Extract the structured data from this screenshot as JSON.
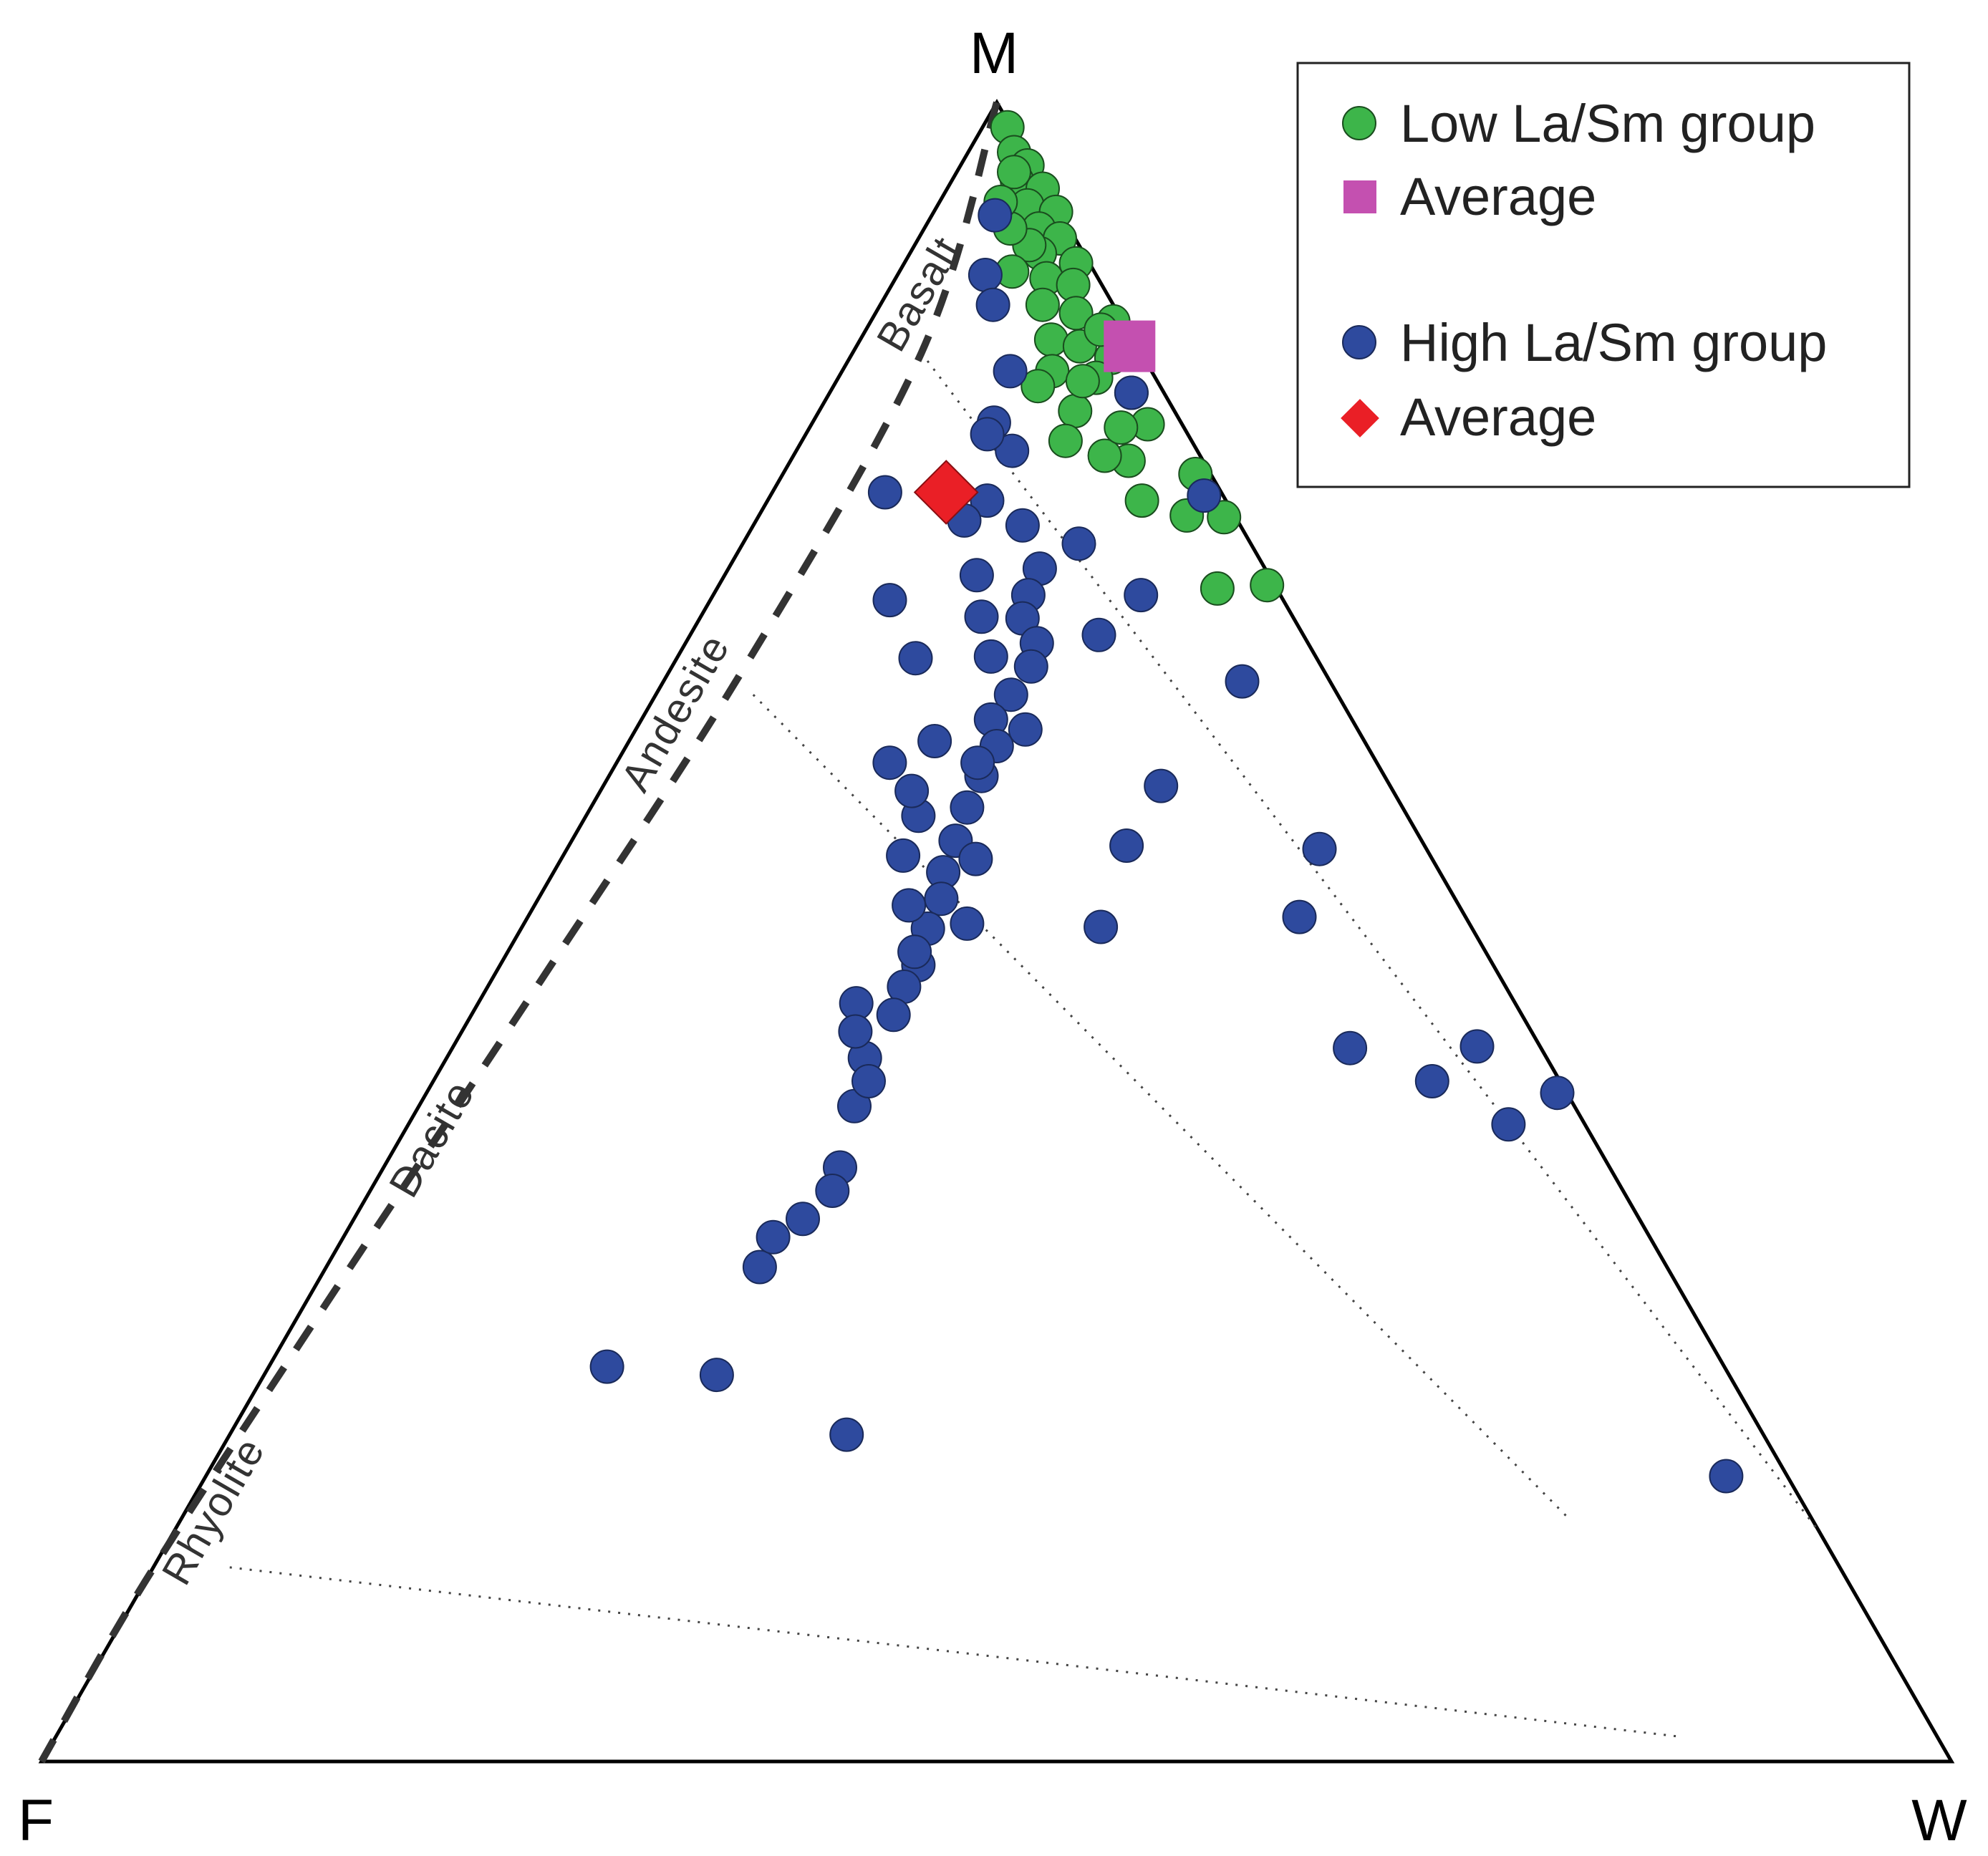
{
  "chart_data": {
    "type": "scatter",
    "subtype": "ternary",
    "vertices": {
      "top": "M",
      "left": "F",
      "right": "W"
    },
    "field_labels": [
      "Basalt",
      "Andesite",
      "Dacite",
      "Rhyolite"
    ],
    "colors": {
      "low_group": "#3db54a",
      "high_group": "#2e4a9e",
      "low_avg": "#c450b0",
      "high_avg": "#ea1f26",
      "outline": "#000000",
      "trend": "#333333"
    },
    "legend": {
      "position": "top-right",
      "entries": [
        {
          "label": "Low La/Sm group",
          "marker": "circle",
          "color": "#3db54a"
        },
        {
          "label": "Average",
          "marker": "square",
          "color": "#c450b0"
        },
        {
          "label": "High La/Sm group",
          "marker": "circle",
          "color": "#2e4a9e"
        },
        {
          "label": "Average",
          "marker": "diamond",
          "color": "#ea1f26"
        }
      ]
    },
    "trend_line": {
      "style": "dashed",
      "points_MFW": [
        [
          1.0,
          0.0,
          0.0
        ],
        [
          0.849,
          0.115,
          0.036
        ],
        [
          0.655,
          0.307,
          0.038
        ],
        [
          0.471,
          0.503,
          0.026
        ],
        [
          0.276,
          0.713,
          0.011
        ],
        [
          0.109,
          0.891,
          0.0
        ],
        [
          0.0,
          1.0,
          0.0
        ]
      ]
    },
    "tie_lines": [
      {
        "from_MFW": [
          0.849,
          0.115,
          0.036
        ],
        "to_MFW": [
          0.138,
          0.0,
          0.862
        ]
      },
      {
        "from_MFW": [
          0.643,
          0.306,
          0.051
        ],
        "to_MFW": [
          0.146,
          0.127,
          0.727
        ]
      },
      {
        "from_MFW": [
          0.117,
          0.843,
          0.04
        ],
        "to_MFW": [
          0.015,
          0.135,
          0.85
        ]
      }
    ],
    "series": [
      {
        "name": "Low La/Sm group",
        "marker": "circle",
        "points_MFW": [
          [
            0.985,
            0.002,
            0.013
          ],
          [
            0.97,
            0.006,
            0.024
          ],
          [
            0.962,
            0.003,
            0.035
          ],
          [
            0.953,
            0.013,
            0.034
          ],
          [
            0.948,
            0.002,
            0.05
          ],
          [
            0.938,
            0.015,
            0.047
          ],
          [
            0.934,
            0.002,
            0.064
          ],
          [
            0.924,
            0.016,
            0.06
          ],
          [
            0.918,
            0.008,
            0.074
          ],
          [
            0.909,
            0.023,
            0.068
          ],
          [
            0.903,
            0.007,
            0.09
          ],
          [
            0.894,
            0.027,
            0.079
          ],
          [
            0.89,
            0.015,
            0.095
          ],
          [
            0.878,
            0.037,
            0.085
          ],
          [
            0.873,
            0.022,
            0.105
          ],
          [
            0.868,
            0.005,
            0.127
          ],
          [
            0.857,
            0.043,
            0.1
          ],
          [
            0.853,
            0.03,
            0.117
          ],
          [
            0.846,
            0.017,
            0.137
          ],
          [
            0.838,
            0.052,
            0.11
          ],
          [
            0.834,
            0.031,
            0.135
          ],
          [
            0.825,
            0.017,
            0.158
          ],
          [
            0.814,
            0.052,
            0.134
          ],
          [
            0.806,
            0.018,
            0.176
          ],
          [
            0.784,
            0.039,
            0.177
          ],
          [
            0.776,
            0.008,
            0.216
          ],
          [
            0.751,
            0.025,
            0.224
          ],
          [
            0.75,
            0.006,
            0.244
          ],
          [
            0.707,
            0.031,
            0.262
          ],
          [
            0.709,
            0.004,
            0.287
          ],
          [
            0.958,
            0.012,
            0.03
          ],
          [
            0.914,
            0.026,
            0.06
          ],
          [
            0.863,
            0.014,
            0.123
          ],
          [
            0.829,
            0.064,
            0.107
          ],
          [
            0.796,
            0.066,
            0.138
          ],
          [
            0.787,
            0.05,
            0.163
          ],
          [
            0.76,
            0.044,
            0.196
          ],
          [
            0.832,
            0.039,
            0.129
          ],
          [
            0.804,
            0.033,
            0.163
          ],
          [
            0.924,
            0.031,
            0.045
          ],
          [
            0.94,
            0.028,
            0.032
          ],
          [
            0.898,
            0.043,
            0.059
          ]
        ]
      },
      {
        "name": "High La/Sm group",
        "marker": "circle",
        "points_MFW": [
          [
            0.932,
            0.035,
            0.033
          ],
          [
            0.896,
            0.058,
            0.046
          ],
          [
            0.878,
            0.063,
            0.059
          ],
          [
            0.838,
            0.074,
            0.088
          ],
          [
            0.807,
            0.098,
            0.095
          ],
          [
            0.79,
            0.097,
            0.113
          ],
          [
            0.76,
            0.125,
            0.115
          ],
          [
            0.745,
            0.114,
            0.141
          ],
          [
            0.734,
            0.09,
            0.176
          ],
          [
            0.719,
            0.118,
            0.163
          ],
          [
            0.703,
            0.132,
            0.165
          ],
          [
            0.689,
            0.142,
            0.169
          ],
          [
            0.674,
            0.142,
            0.184
          ],
          [
            0.66,
            0.152,
            0.188
          ],
          [
            0.643,
            0.171,
            0.186
          ],
          [
            0.628,
            0.189,
            0.183
          ],
          [
            0.612,
            0.194,
            0.194
          ],
          [
            0.594,
            0.211,
            0.195
          ],
          [
            0.575,
            0.228,
            0.197
          ],
          [
            0.555,
            0.244,
            0.201
          ],
          [
            0.536,
            0.26,
            0.204
          ],
          [
            0.52,
            0.269,
            0.211
          ],
          [
            0.502,
            0.285,
            0.213
          ],
          [
            0.48,
            0.301,
            0.219
          ],
          [
            0.467,
            0.315,
            0.218
          ],
          [
            0.45,
            0.329,
            0.221
          ],
          [
            0.765,
            0.176,
            0.059
          ],
          [
            0.7,
            0.206,
            0.094
          ],
          [
            0.665,
            0.21,
            0.125
          ],
          [
            0.602,
            0.255,
            0.143
          ],
          [
            0.57,
            0.256,
            0.174
          ],
          [
            0.546,
            0.276,
            0.178
          ],
          [
            0.516,
            0.288,
            0.196
          ],
          [
            0.488,
            0.299,
            0.213
          ],
          [
            0.457,
            0.345,
            0.198
          ],
          [
            0.424,
            0.357,
            0.219
          ],
          [
            0.395,
            0.377,
            0.228
          ],
          [
            0.358,
            0.403,
            0.239
          ],
          [
            0.327,
            0.438,
            0.235
          ],
          [
            0.298,
            0.475,
            0.227
          ],
          [
            0.238,
            0.585,
            0.177
          ],
          [
            0.233,
            0.53,
            0.237
          ],
          [
            0.197,
            0.48,
            0.323
          ],
          [
            0.748,
            0.143,
            0.109
          ],
          [
            0.715,
            0.153,
            0.132
          ],
          [
            0.69,
            0.163,
            0.147
          ],
          [
            0.666,
            0.17,
            0.164
          ],
          [
            0.615,
            0.225,
            0.16
          ],
          [
            0.585,
            0.252,
            0.163
          ],
          [
            0.544,
            0.239,
            0.217
          ],
          [
            0.505,
            0.263,
            0.232
          ],
          [
            0.44,
            0.354,
            0.206
          ],
          [
            0.41,
            0.362,
            0.228
          ],
          [
            0.344,
            0.414,
            0.242
          ],
          [
            0.316,
            0.459,
            0.225
          ],
          [
            0.703,
            0.073,
            0.224
          ],
          [
            0.679,
            0.107,
            0.214
          ],
          [
            0.651,
            0.046,
            0.303
          ],
          [
            0.602,
            0.209,
            0.189
          ],
          [
            0.588,
            0.12,
            0.292
          ],
          [
            0.55,
            0.056,
            0.394
          ],
          [
            0.552,
            0.156,
            0.292
          ],
          [
            0.509,
            0.087,
            0.404
          ],
          [
            0.503,
            0.194,
            0.303
          ],
          [
            0.43,
            0.1,
            0.47
          ],
          [
            0.41,
            0.067,
            0.523
          ],
          [
            0.431,
            0.033,
            0.536
          ],
          [
            0.384,
            0.04,
            0.576
          ],
          [
            0.403,
            0.005,
            0.592
          ],
          [
            0.825,
            0.017,
            0.158
          ],
          [
            0.763,
            0.01,
            0.227
          ],
          [
            0.172,
            0.032,
            0.796
          ],
          [
            0.8,
            0.105,
            0.095
          ],
          [
            0.622,
            0.174,
            0.204
          ]
        ]
      },
      {
        "name": "Average",
        "group": "Low La/Sm group",
        "marker": "square",
        "points_MFW": [
          [
            0.853,
            0.004,
            0.143
          ]
        ]
      },
      {
        "name": "Average",
        "group": "High La/Sm group",
        "marker": "diamond",
        "points_MFW": [
          [
            0.765,
            0.144,
            0.091
          ]
        ]
      }
    ]
  }
}
